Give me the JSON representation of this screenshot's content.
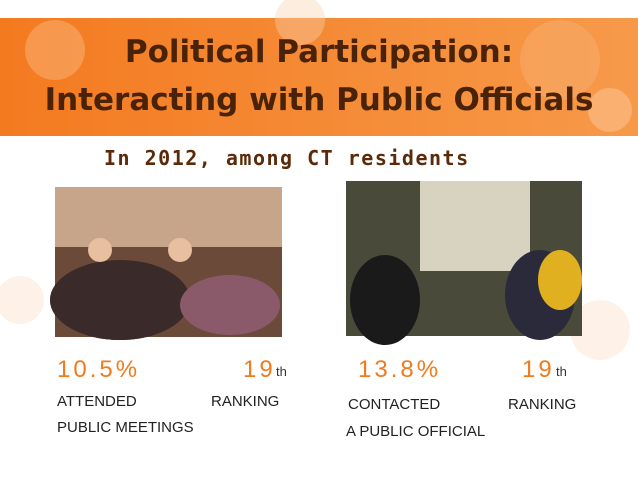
{
  "header": {
    "title_lines": [
      "Political Participation:",
      "Interacting with Public Officials"
    ],
    "subtitle": "In 2012, among CT residents"
  },
  "stats": [
    {
      "value": "10.5%",
      "rank": "19",
      "rank_suffix": "th",
      "label_lines": [
        "ATTENDED",
        "PUBLIC MEETINGS"
      ],
      "rank_label": "RANKING"
    },
    {
      "value": "13.8%",
      "rank": "19",
      "rank_suffix": "th",
      "label_lines": [
        "CONTACTED",
        "A PUBLIC OFFICIAL"
      ],
      "rank_label": "RANKING"
    }
  ]
}
